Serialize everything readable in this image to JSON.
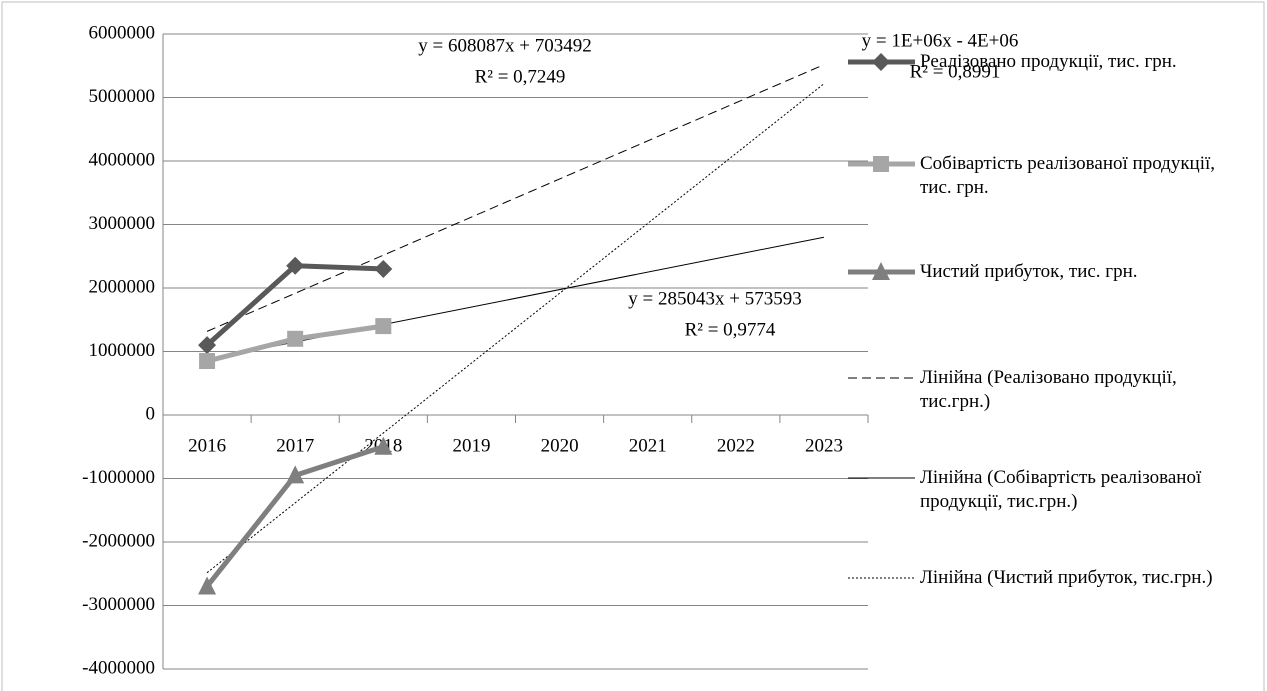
{
  "chart_data": {
    "type": "line",
    "categories": [
      "2016",
      "2017",
      "2018",
      "2019",
      "2020",
      "2021",
      "2022",
      "2023"
    ],
    "series": [
      {
        "name": "Реалізовано продукції, тис. грн.",
        "color": "#595959",
        "marker": "diamond",
        "values": [
          1100000,
          2350000,
          2300000,
          null,
          null,
          null,
          null,
          null
        ]
      },
      {
        "name": "Собівартість реалізованої продукції, тис. грн.",
        "color": "#a6a6a6",
        "marker": "square",
        "values": [
          850000,
          1200000,
          1400000,
          null,
          null,
          null,
          null,
          null
        ]
      },
      {
        "name": "Чистий прибуток, тис. грн.",
        "color": "#7f7f7f",
        "marker": "triangle",
        "values": [
          -2700000,
          -950000,
          -500000,
          null,
          null,
          null,
          null,
          null
        ]
      }
    ],
    "trendlines": [
      {
        "name": "Лінійна (Реалізовано продукції, тис.грн.)",
        "series": 0,
        "style": "dashed"
      },
      {
        "name": "Лінійна (Собівартість реалізованої продукції, тис.грн.)",
        "series": 1,
        "style": "solid"
      },
      {
        "name": "Лінійна (Чистий прибуток, тис.грн.)",
        "series": 2,
        "style": "dotted"
      }
    ],
    "annotations": [
      {
        "lines": [
          "y = 608087x + 703492",
          "R² = 0,7249"
        ]
      },
      {
        "lines": [
          "y = 285043x + 573593",
          "R² = 0,9774"
        ]
      },
      {
        "lines": [
          "y = 1E+06x - 4E+06",
          "R² = 0,8991"
        ]
      }
    ],
    "ylim": [
      -4000000,
      6000000
    ],
    "yticks": [
      -4000000,
      -3000000,
      -2000000,
      -1000000,
      0,
      1000000,
      2000000,
      3000000,
      4000000,
      5000000,
      6000000
    ],
    "grid": true,
    "legend": "right"
  }
}
